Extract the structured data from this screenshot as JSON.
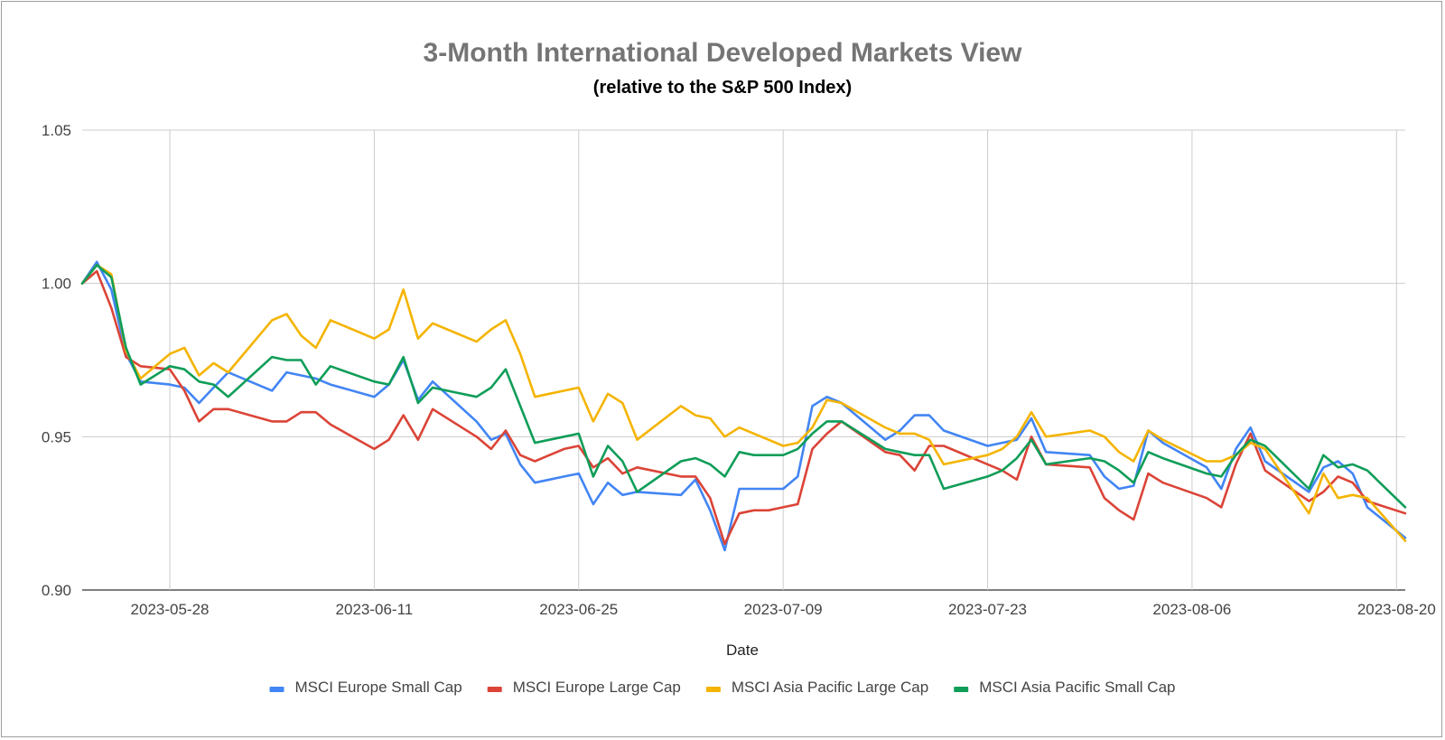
{
  "chart_data": {
    "type": "line",
    "title": "3-Month International Developed Markets View",
    "subtitle": "(relative to the S&P 500 Index)",
    "xlabel": "Date",
    "ylabel": "",
    "ylim": [
      0.9,
      1.05
    ],
    "yticks": [
      "0.90",
      "0.95",
      "1.00",
      "1.05"
    ],
    "ytick_values": [
      0.9,
      0.95,
      1.0,
      1.05
    ],
    "xticks": [
      "2023-05-28",
      "2023-06-11",
      "2023-06-25",
      "2023-07-09",
      "2023-07-23",
      "2023-08-06",
      "2023-08-20"
    ],
    "xtick_days": [
      6,
      20,
      34,
      48,
      62,
      76,
      90
    ],
    "x_range_days": [
      0,
      90.6
    ],
    "x_origin": "2023-05-22",
    "x_unit": "days since 2023-05-22",
    "grid": true,
    "legend_position": "bottom",
    "series": [
      {
        "name": "MSCI Europe Small Cap",
        "color": "#4285f4",
        "x": [
          0,
          1,
          2,
          3,
          4,
          6,
          7,
          8,
          9,
          10,
          13,
          14,
          15,
          16,
          17,
          20,
          21,
          22,
          23,
          24,
          27,
          28,
          29,
          30,
          31,
          32,
          33,
          34,
          35,
          36,
          37,
          38,
          41,
          42,
          43,
          44,
          45,
          46,
          47,
          48,
          49,
          50,
          51,
          52,
          55,
          56,
          57,
          58,
          59,
          62,
          63,
          64,
          65,
          66,
          69,
          70,
          71,
          72,
          73,
          74,
          77,
          78,
          79,
          80,
          81,
          84,
          85,
          86,
          87,
          88,
          90.6
        ],
        "y": [
          1.0,
          1.007,
          0.998,
          0.977,
          0.968,
          0.967,
          0.966,
          0.961,
          0.966,
          0.971,
          0.965,
          0.971,
          0.97,
          0.969,
          0.967,
          0.963,
          0.967,
          0.975,
          0.962,
          0.968,
          0.955,
          0.949,
          0.951,
          0.941,
          0.935,
          0.936,
          0.937,
          0.938,
          0.928,
          0.935,
          0.931,
          0.932,
          0.931,
          0.936,
          0.926,
          0.913,
          0.933,
          0.933,
          0.933,
          0.933,
          0.937,
          0.96,
          0.963,
          0.961,
          0.949,
          0.952,
          0.957,
          0.957,
          0.952,
          0.947,
          0.948,
          0.949,
          0.956,
          0.945,
          0.944,
          0.937,
          0.933,
          0.934,
          0.952,
          0.948,
          0.94,
          0.933,
          0.946,
          0.953,
          0.942,
          0.932,
          0.94,
          0.942,
          0.938,
          0.927,
          0.917
        ]
      },
      {
        "name": "MSCI Europe Large Cap",
        "color": "#db4437",
        "x": [
          0,
          1,
          2,
          3,
          4,
          6,
          7,
          8,
          9,
          10,
          13,
          14,
          15,
          16,
          17,
          20,
          21,
          22,
          23,
          24,
          27,
          28,
          29,
          30,
          31,
          32,
          33,
          34,
          35,
          36,
          37,
          38,
          41,
          42,
          43,
          44,
          45,
          46,
          47,
          48,
          49,
          50,
          51,
          52,
          55,
          56,
          57,
          58,
          59,
          62,
          63,
          64,
          65,
          66,
          69,
          70,
          71,
          72,
          73,
          74,
          77,
          78,
          79,
          80,
          81,
          84,
          85,
          86,
          87,
          88,
          90.6
        ],
        "y": [
          1.0,
          1.004,
          0.992,
          0.976,
          0.973,
          0.972,
          0.965,
          0.955,
          0.959,
          0.959,
          0.955,
          0.955,
          0.958,
          0.958,
          0.954,
          0.946,
          0.949,
          0.957,
          0.949,
          0.959,
          0.95,
          0.946,
          0.952,
          0.944,
          0.942,
          0.944,
          0.946,
          0.947,
          0.94,
          0.943,
          0.938,
          0.94,
          0.937,
          0.937,
          0.93,
          0.915,
          0.925,
          0.926,
          0.926,
          0.927,
          0.928,
          0.946,
          0.951,
          0.955,
          0.945,
          0.944,
          0.939,
          0.947,
          0.947,
          0.941,
          0.939,
          0.936,
          0.95,
          0.941,
          0.94,
          0.93,
          0.926,
          0.923,
          0.938,
          0.935,
          0.93,
          0.927,
          0.941,
          0.951,
          0.939,
          0.929,
          0.932,
          0.937,
          0.935,
          0.929,
          0.925
        ]
      },
      {
        "name": "MSCI Asia Pacific Large Cap",
        "color": "#f4b400",
        "x": [
          0,
          1,
          2,
          3,
          4,
          6,
          7,
          8,
          9,
          10,
          13,
          14,
          15,
          16,
          17,
          20,
          21,
          22,
          23,
          24,
          27,
          28,
          29,
          30,
          31,
          32,
          33,
          34,
          35,
          36,
          37,
          38,
          41,
          42,
          43,
          44,
          45,
          46,
          47,
          48,
          49,
          50,
          51,
          52,
          55,
          56,
          57,
          58,
          59,
          62,
          63,
          64,
          65,
          66,
          69,
          70,
          71,
          72,
          73,
          74,
          77,
          78,
          79,
          80,
          81,
          84,
          85,
          86,
          87,
          88,
          90.6
        ],
        "y": [
          1.0,
          1.006,
          1.003,
          0.978,
          0.969,
          0.977,
          0.979,
          0.97,
          0.974,
          0.971,
          0.988,
          0.99,
          0.983,
          0.979,
          0.988,
          0.982,
          0.985,
          0.998,
          0.982,
          0.987,
          0.981,
          0.985,
          0.988,
          0.977,
          0.963,
          0.964,
          0.965,
          0.966,
          0.955,
          0.964,
          0.961,
          0.949,
          0.96,
          0.957,
          0.956,
          0.95,
          0.953,
          0.951,
          0.949,
          0.947,
          0.948,
          0.953,
          0.962,
          0.961,
          0.953,
          0.951,
          0.951,
          0.949,
          0.941,
          0.944,
          0.946,
          0.95,
          0.958,
          0.95,
          0.952,
          0.95,
          0.945,
          0.942,
          0.952,
          0.949,
          0.942,
          0.942,
          0.944,
          0.948,
          0.946,
          0.925,
          0.938,
          0.93,
          0.931,
          0.93,
          0.916
        ]
      },
      {
        "name": "MSCI Asia Pacific Small Cap",
        "color": "#0f9d58",
        "x": [
          0,
          1,
          2,
          3,
          4,
          6,
          7,
          8,
          9,
          10,
          13,
          14,
          15,
          16,
          17,
          20,
          21,
          22,
          23,
          24,
          27,
          28,
          29,
          30,
          31,
          32,
          33,
          34,
          35,
          36,
          37,
          38,
          41,
          42,
          43,
          44,
          45,
          46,
          47,
          48,
          49,
          50,
          51,
          52,
          55,
          56,
          57,
          58,
          59,
          62,
          63,
          64,
          65,
          66,
          69,
          70,
          71,
          72,
          73,
          74,
          77,
          78,
          79,
          80,
          81,
          84,
          85,
          86,
          87,
          88,
          90.6
        ],
        "y": [
          1.0,
          1.006,
          1.002,
          0.979,
          0.967,
          0.973,
          0.972,
          0.968,
          0.967,
          0.963,
          0.976,
          0.975,
          0.975,
          0.967,
          0.973,
          0.968,
          0.967,
          0.976,
          0.961,
          0.966,
          0.963,
          0.966,
          0.972,
          0.96,
          0.948,
          0.949,
          0.95,
          0.951,
          0.937,
          0.947,
          0.942,
          0.932,
          0.942,
          0.943,
          0.941,
          0.937,
          0.945,
          0.944,
          0.944,
          0.944,
          0.946,
          0.951,
          0.955,
          0.955,
          0.946,
          0.945,
          0.944,
          0.944,
          0.933,
          0.937,
          0.939,
          0.943,
          0.949,
          0.941,
          0.943,
          0.942,
          0.939,
          0.935,
          0.945,
          0.943,
          0.938,
          0.937,
          0.944,
          0.949,
          0.947,
          0.933,
          0.944,
          0.94,
          0.941,
          0.939,
          0.927
        ]
      }
    ]
  }
}
